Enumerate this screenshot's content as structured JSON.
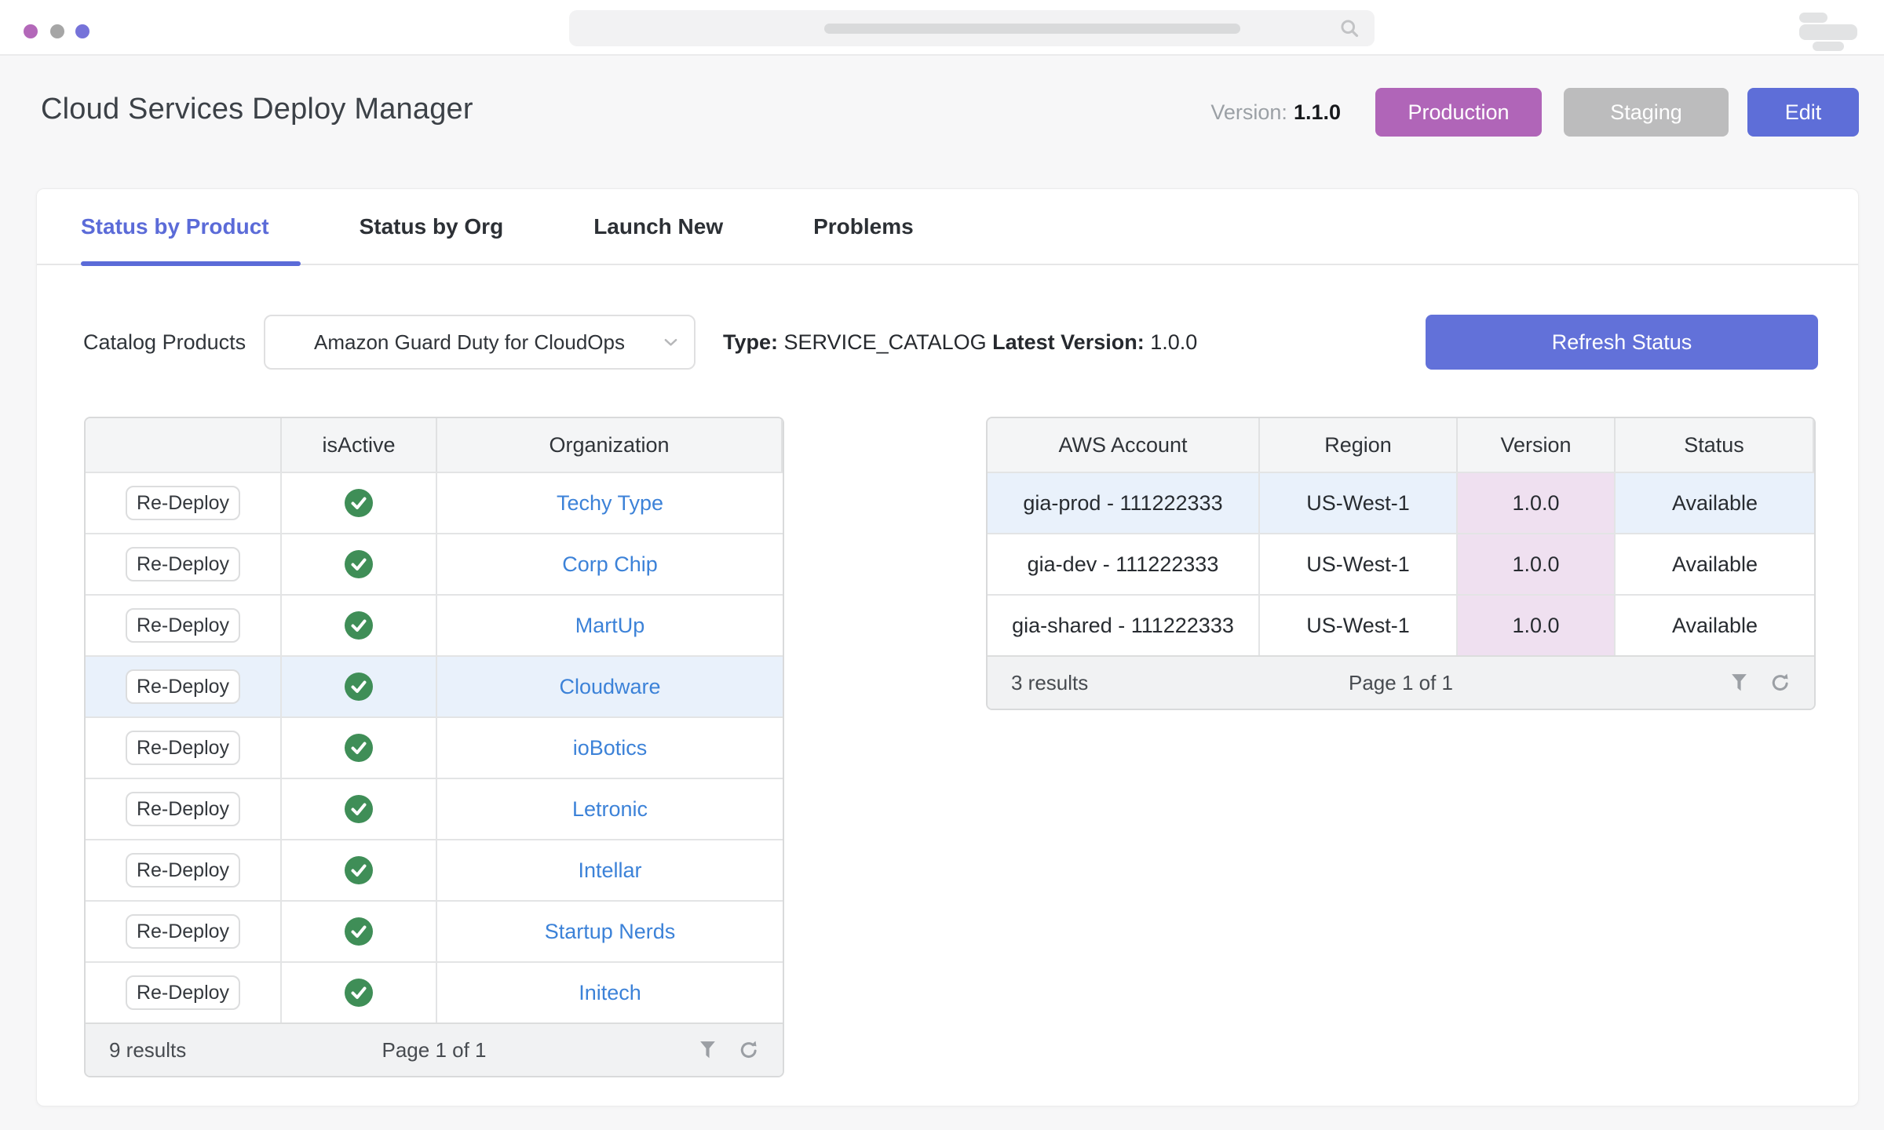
{
  "topbar": {
    "dot_colors": [
      "#b368b9",
      "#a6a6a6",
      "#7673d9"
    ],
    "search_value": ""
  },
  "header": {
    "title": "Cloud Services Deploy Manager",
    "version_label": "Version:",
    "version_value": "1.1.0",
    "production_button": "Production",
    "staging_button": "Staging",
    "edit_button": "Edit"
  },
  "tabs": {
    "status_by_product": "Status by Product",
    "status_by_org": "Status by Org",
    "launch_new": "Launch New",
    "problems": "Problems",
    "active_tab": "Status by Product"
  },
  "controls": {
    "catalog_label": "Catalog Products",
    "selected_product": "Amazon Guard Duty for CloudOps",
    "type_label": "Type:",
    "type_value": "SERVICE_CATALOG",
    "latest_version_label": "Latest Version:",
    "latest_version_value": "1.0.0",
    "refresh_button": "Refresh Status"
  },
  "org_table": {
    "col_isactive": "isActive",
    "col_organization": "Organization",
    "redeploy_label": "Re-Deploy",
    "rows": [
      {
        "org": "Techy Type",
        "is_active": true,
        "highlighted": false
      },
      {
        "org": "Corp Chip",
        "is_active": true,
        "highlighted": false
      },
      {
        "org": "MartUp",
        "is_active": true,
        "highlighted": false
      },
      {
        "org": "Cloudware",
        "is_active": true,
        "highlighted": true
      },
      {
        "org": "ioBotics",
        "is_active": true,
        "highlighted": false
      },
      {
        "org": "Letronic",
        "is_active": true,
        "highlighted": false
      },
      {
        "org": "Intellar",
        "is_active": true,
        "highlighted": false
      },
      {
        "org": "Startup Nerds",
        "is_active": true,
        "highlighted": false
      },
      {
        "org": "Initech",
        "is_active": true,
        "highlighted": false
      }
    ],
    "results": "9 results",
    "page": "Page 1 of 1"
  },
  "account_table": {
    "col_account": "AWS Account",
    "col_region": "Region",
    "col_version": "Version",
    "col_status": "Status",
    "rows": [
      {
        "account": "gia-prod - 111222333",
        "region": "US-West-1",
        "version": "1.0.0",
        "status": "Available",
        "highlighted": true
      },
      {
        "account": "gia-dev - 111222333",
        "region": "US-West-1",
        "version": "1.0.0",
        "status": "Available",
        "highlighted": false
      },
      {
        "account": "gia-shared - 111222333",
        "region": "US-West-1",
        "version": "1.0.0",
        "status": "Available",
        "highlighted": false
      }
    ],
    "results": "3 results",
    "page": "Page 1 of 1"
  },
  "colors": {
    "accent_indigo": "#5b6bd8",
    "production_purple": "#b065b8",
    "staging_gray": "#bcbcbd",
    "edit_indigo": "#5e6ed8",
    "refresh_indigo": "#6271d9",
    "link_blue": "#3c82d8",
    "check_green": "#3f8e57",
    "highlight_blue": "#e9f1fb",
    "version_pink": "#efe0f0"
  }
}
